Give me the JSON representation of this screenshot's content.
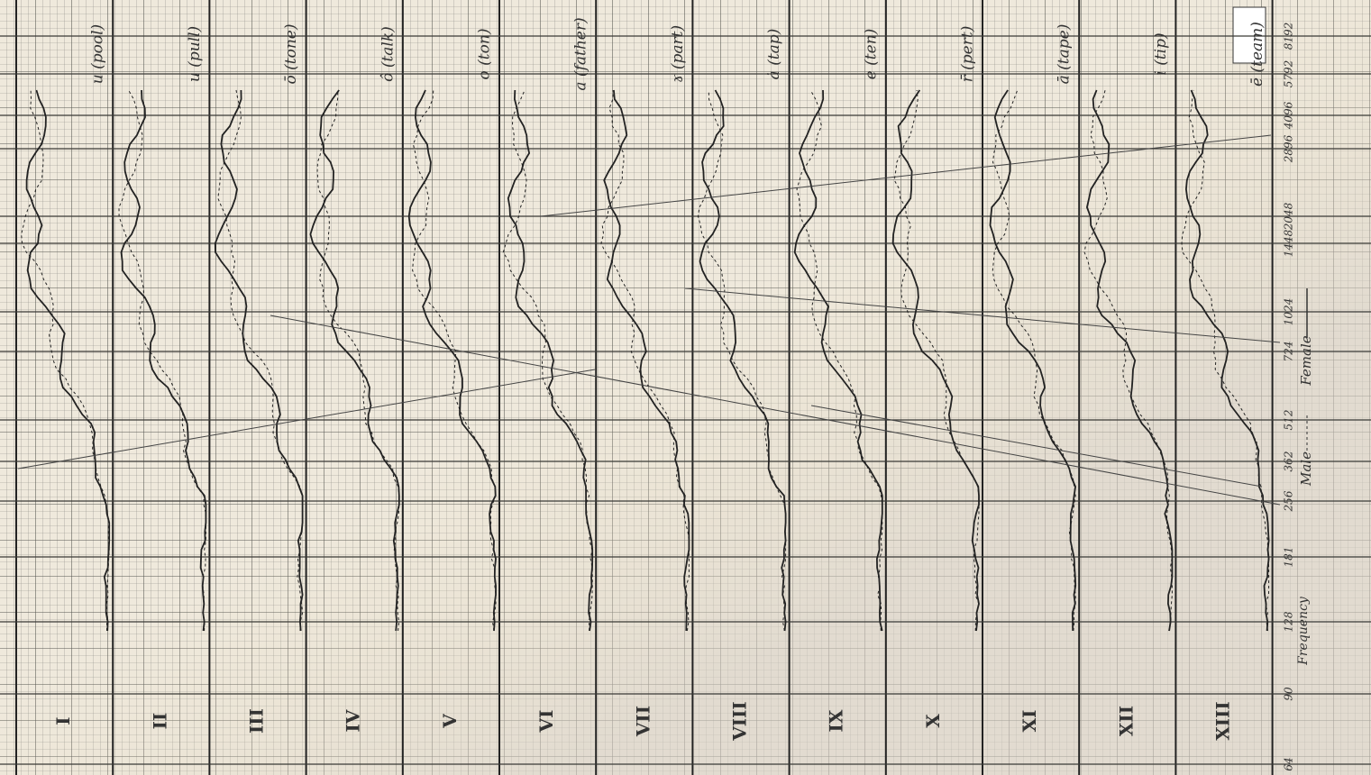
{
  "rows": [
    {
      "numeral": "I",
      "vowel": "u (pool)"
    },
    {
      "numeral": "II",
      "vowel": "u (pull)"
    },
    {
      "numeral": "III",
      "vowel": "ō (tone)"
    },
    {
      "numeral": "IV",
      "vowel": "ô (talk)"
    },
    {
      "numeral": "V",
      "vowel": "o (ton)"
    },
    {
      "numeral": "VI",
      "vowel": "a (father)"
    },
    {
      "numeral": "VII",
      "vowel": "ɤ (part)"
    },
    {
      "numeral": "VIII",
      "vowel": "ȧ (tap)"
    },
    {
      "numeral": "IX",
      "vowel": "e (ten)"
    },
    {
      "numeral": "X",
      "vowel": "r̄ (pert)"
    },
    {
      "numeral": "XI",
      "vowel": "ā (tape)"
    },
    {
      "numeral": "XII",
      "vowel": "i (tip)"
    },
    {
      "numeral": "XIII",
      "vowel": "ē (team)"
    }
  ],
  "frequency_axis": {
    "title": "Frequency",
    "labels": [
      "64",
      "90",
      "128",
      "181",
      "256",
      "362",
      "512",
      "724",
      "1024",
      "1448",
      "2048",
      "2896",
      "4096",
      "5792",
      "8192"
    ]
  },
  "legend": {
    "male": "Male",
    "female": "Female"
  }
}
